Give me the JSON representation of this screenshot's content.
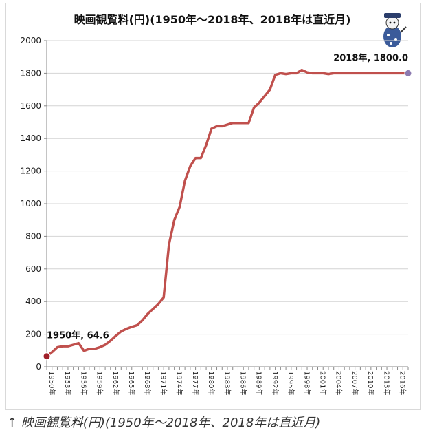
{
  "chart_data": {
    "type": "line",
    "title": "映画観覧料(円)(1950年〜2018年、2018年は直近月)",
    "xlabel": "",
    "ylabel": "",
    "ylim": [
      0,
      2000
    ],
    "yticks": [
      0,
      200,
      400,
      600,
      800,
      1000,
      1200,
      1400,
      1600,
      1800,
      2000
    ],
    "grid": true,
    "legend": "none",
    "x_tick_labels": [
      "1950年",
      "1953年",
      "1956年",
      "1959年",
      "1962年",
      "1965年",
      "1968年",
      "1971年",
      "1974年",
      "1977年",
      "1980年",
      "1983年",
      "1986年",
      "1989年",
      "1992年",
      "1995年",
      "1998年",
      "2001年",
      "2004年",
      "2007年",
      "2010年",
      "2013年",
      "2016年"
    ],
    "x": [
      1950,
      1951,
      1952,
      1953,
      1954,
      1955,
      1956,
      1957,
      1958,
      1959,
      1960,
      1961,
      1962,
      1963,
      1964,
      1965,
      1966,
      1967,
      1968,
      1969,
      1970,
      1971,
      1972,
      1973,
      1974,
      1975,
      1976,
      1977,
      1978,
      1979,
      1980,
      1981,
      1982,
      1983,
      1984,
      1985,
      1986,
      1987,
      1988,
      1989,
      1990,
      1991,
      1992,
      1993,
      1994,
      1995,
      1996,
      1997,
      1998,
      1999,
      2000,
      2001,
      2002,
      2003,
      2004,
      2005,
      2006,
      2007,
      2008,
      2009,
      2010,
      2011,
      2012,
      2013,
      2014,
      2015,
      2016,
      2017,
      2018
    ],
    "series": [
      {
        "values": [
          64.6,
          90,
          120,
          126,
          126,
          135,
          145,
          98,
          110,
          110,
          120,
          135,
          160,
          190,
          217,
          233,
          245,
          255,
          285,
          325,
          355,
          385,
          425,
          750,
          900,
          980,
          1140,
          1230,
          1280,
          1280,
          1360,
          1460,
          1475,
          1475,
          1485,
          1495,
          1495,
          1495,
          1495,
          1590,
          1620,
          1660,
          1700,
          1790,
          1800,
          1795,
          1800,
          1800,
          1820,
          1805,
          1800,
          1800,
          1800,
          1795,
          1800,
          1800,
          1800,
          1800,
          1800,
          1800,
          1800,
          1800,
          1800,
          1800,
          1800,
          1800,
          1800,
          1800,
          1800
        ],
        "color": "#c0504d"
      }
    ],
    "annotations": [
      {
        "x": 1950,
        "y": 64.6,
        "text": "1950年, 64.6",
        "marker_color": "#a0202a"
      },
      {
        "x": 2018,
        "y": 1800,
        "text": "2018年, 1800.0",
        "marker_color": "#8c7ab0"
      }
    ]
  },
  "caption": "↑ 映画観覧料(円)(1950年〜2018年、2018年は直近月)",
  "mascot": {
    "icon": "mascot-character-icon"
  }
}
